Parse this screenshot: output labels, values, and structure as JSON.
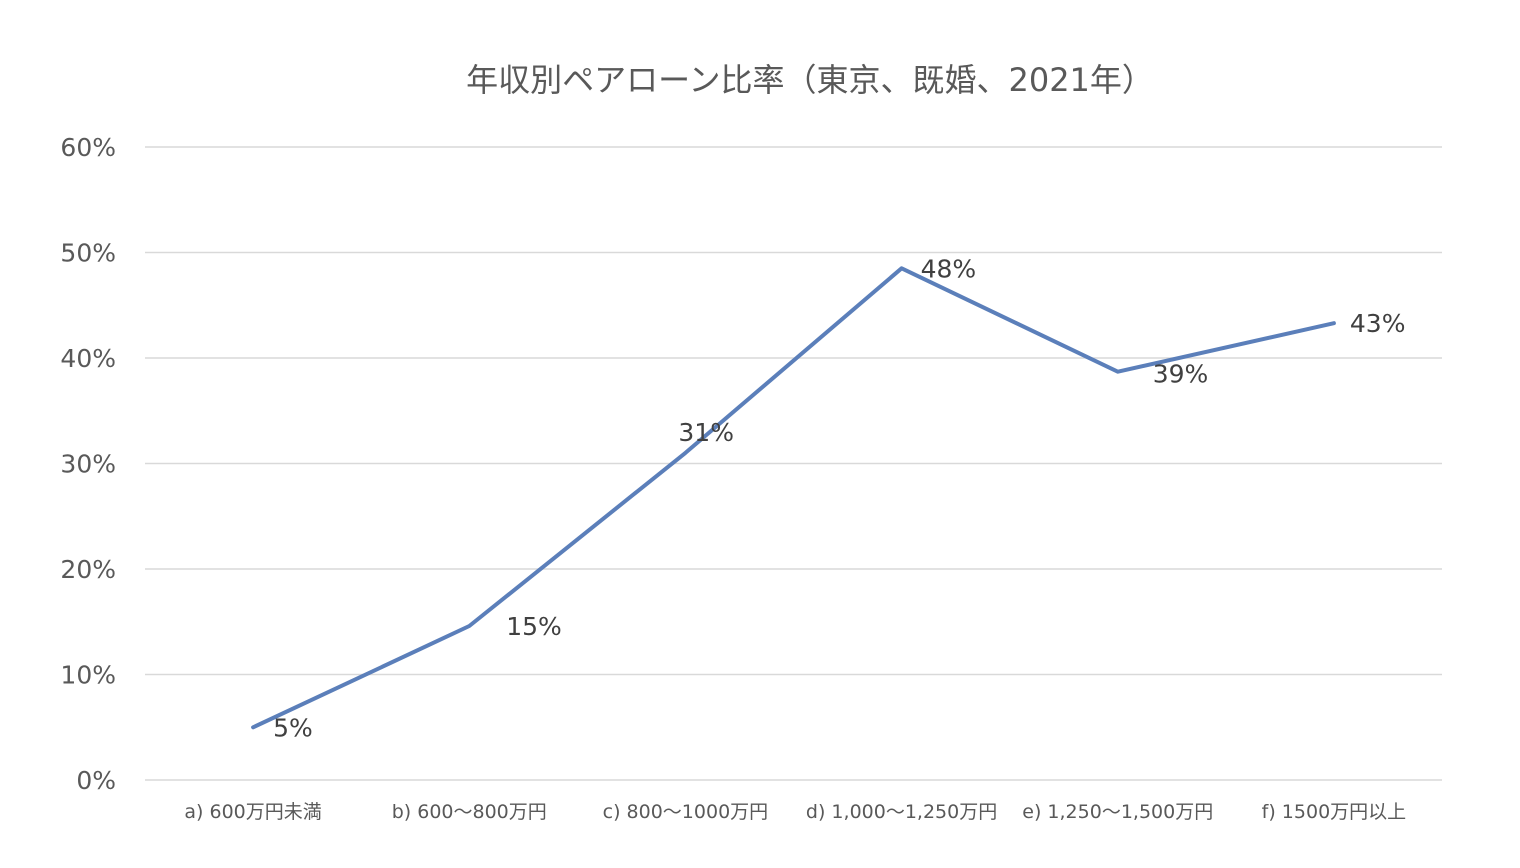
{
  "chart_data": {
    "type": "line",
    "title": "年収別ペアローン比率（東京、既婚、2021年）",
    "xlabel": "",
    "ylabel": "",
    "categories": [
      "a) 600万円未満",
      "b) 600〜800万円",
      "c) 800〜1000万円",
      "d) 1,000〜1,250万円",
      "e) 1,250〜1,500万円",
      "f) 1500万円以上"
    ],
    "series": [
      {
        "values": [
          0.05,
          0.146,
          0.31,
          0.485,
          0.387,
          0.433
        ],
        "labels": [
          "5%",
          "15%",
          "31%",
          "48%",
          "39%",
          "43%"
        ]
      }
    ],
    "ylim": [
      0,
      0.6
    ],
    "yticks": [
      0,
      0.1,
      0.2,
      0.3,
      0.4,
      0.5,
      0.6
    ],
    "ytick_labels": [
      "0%",
      "10%",
      "20%",
      "30%",
      "40%",
      "50%",
      "60%"
    ],
    "grid": true,
    "legend": "none",
    "colors": {
      "line": "#5b7fba",
      "grid": "#d9d9d9",
      "axis_text": "#595959"
    }
  }
}
